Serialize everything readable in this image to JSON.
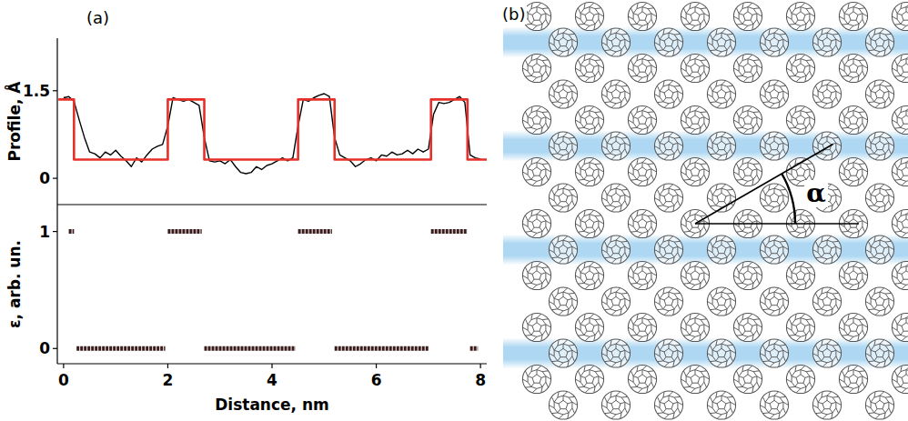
{
  "chart_data": [
    {
      "type": "line",
      "y_label": "Profile, Å",
      "xlim": [
        -0.12,
        8.12
      ],
      "ylim": [
        -0.45,
        2.4
      ],
      "yticks": [
        0,
        1.5
      ],
      "tick_labels": "y",
      "series": [
        {
          "color": "#000000",
          "x": [
            0,
            0.1,
            0.2,
            0.3,
            0.4,
            0.5,
            0.6,
            0.7,
            0.8,
            0.9,
            1.0,
            1.1,
            1.2,
            1.3,
            1.4,
            1.5,
            1.6,
            1.7,
            1.8,
            1.9,
            2.0,
            2.1,
            2.2,
            2.3,
            2.4,
            2.5,
            2.6,
            2.7,
            2.8,
            2.9,
            3.0,
            3.1,
            3.2,
            3.3,
            3.4,
            3.5,
            3.6,
            3.7,
            3.8,
            3.9,
            4.0,
            4.1,
            4.2,
            4.3,
            4.4,
            4.5,
            4.6,
            4.7,
            4.8,
            4.9,
            5.0,
            5.1,
            5.2,
            5.3,
            5.4,
            5.5,
            5.6,
            5.7,
            5.8,
            5.9,
            6.0,
            6.1,
            6.2,
            6.3,
            6.4,
            6.5,
            6.6,
            6.7,
            6.8,
            6.9,
            7.0,
            7.1,
            7.2,
            7.3,
            7.4,
            7.5,
            7.6,
            7.7,
            7.8,
            7.9,
            8.0
          ],
          "values": [
            1.38,
            1.4,
            1.32,
            1.0,
            0.7,
            0.45,
            0.42,
            0.35,
            0.45,
            0.4,
            0.48,
            0.38,
            0.3,
            0.2,
            0.35,
            0.28,
            0.4,
            0.5,
            0.55,
            0.58,
            0.9,
            1.38,
            1.35,
            1.32,
            1.35,
            1.3,
            1.25,
            0.7,
            0.3,
            0.28,
            0.3,
            0.25,
            0.32,
            0.2,
            0.1,
            0.08,
            0.1,
            0.2,
            0.15,
            0.22,
            0.25,
            0.3,
            0.35,
            0.3,
            0.35,
            0.9,
            1.35,
            1.32,
            1.38,
            1.42,
            1.45,
            1.4,
            0.7,
            0.4,
            0.35,
            0.3,
            0.2,
            0.25,
            0.32,
            0.35,
            0.3,
            0.4,
            0.38,
            0.45,
            0.4,
            0.42,
            0.48,
            0.42,
            0.5,
            0.45,
            0.5,
            1.1,
            1.3,
            1.28,
            1.3,
            1.35,
            1.4,
            1.3,
            0.4,
            0.35,
            0.33
          ]
        },
        {
          "color": "#e8302a",
          "x": [
            -0.1,
            0.2,
            0.2,
            2.0,
            2.0,
            2.7,
            2.7,
            4.5,
            4.5,
            5.2,
            5.2,
            7.05,
            7.05,
            7.75,
            7.75,
            8.12
          ],
          "values": [
            1.35,
            1.35,
            0.32,
            0.32,
            1.35,
            1.35,
            0.32,
            0.32,
            1.35,
            1.35,
            0.32,
            0.32,
            1.35,
            1.35,
            0.32,
            0.32
          ]
        }
      ]
    },
    {
      "type": "segment",
      "x_label": "Distance, nm",
      "y_label": "ε, arb. un.",
      "xlim": [
        -0.12,
        8.12
      ],
      "ylim": [
        -0.13,
        1.23
      ],
      "xticks": [
        0,
        2,
        4,
        6,
        8
      ],
      "yticks": [
        0,
        1
      ],
      "color": "#3b1c1c",
      "x_start": [
        0.1,
        0.25,
        2.0,
        2.7,
        4.5,
        5.2,
        7.05,
        7.8
      ],
      "x_end": [
        0.2,
        1.95,
        2.65,
        4.45,
        5.15,
        7.0,
        7.75,
        7.95
      ],
      "values": [
        1,
        0,
        1,
        0,
        1,
        0,
        1,
        0
      ]
    }
  ],
  "panel_labels": {
    "a": "(a)",
    "b": "(b)"
  },
  "diagram": {
    "angle_label": "α"
  }
}
